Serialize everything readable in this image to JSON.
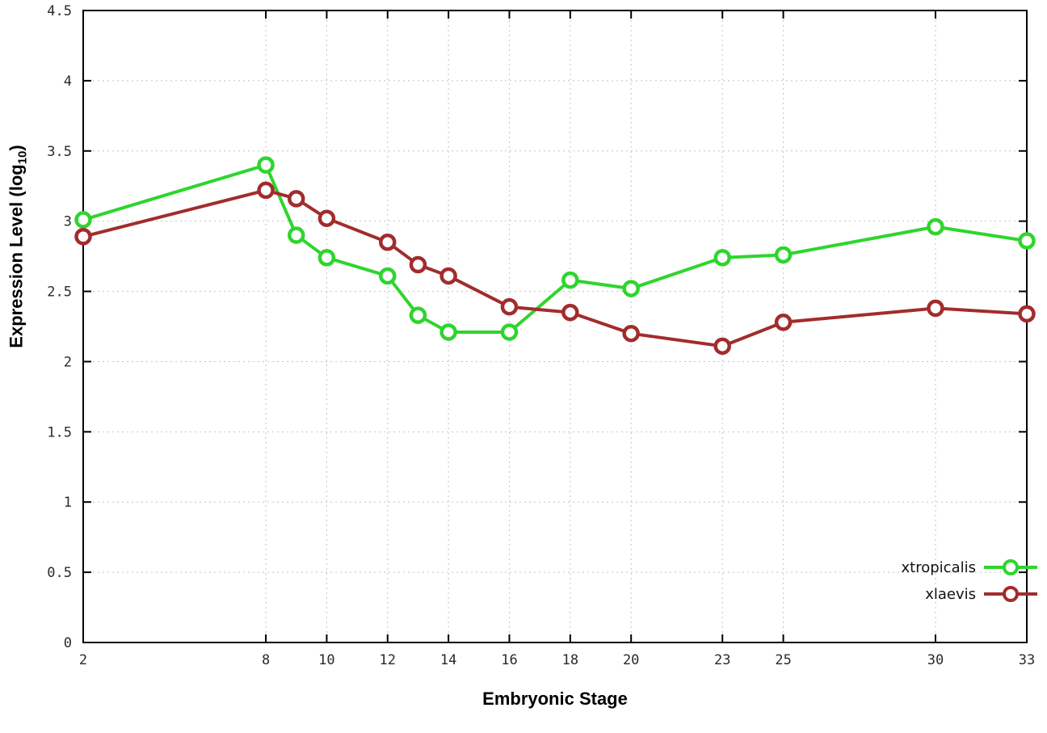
{
  "chart_data": {
    "type": "line",
    "title": "",
    "xlabel": "Embryonic Stage",
    "ylabel": "Expression Level (log10)",
    "ylabel_parts": [
      "Expression Level (log",
      "10",
      ")"
    ],
    "xlim": [
      2,
      33
    ],
    "ylim": [
      0,
      4.5
    ],
    "xticks": [
      2,
      8,
      10,
      12,
      14,
      16,
      18,
      20,
      23,
      25,
      30,
      33
    ],
    "yticks": [
      0,
      0.5,
      1,
      1.5,
      2,
      2.5,
      3,
      3.5,
      4,
      4.5
    ],
    "grid": true,
    "legend_position": "bottom-right",
    "x": [
      2,
      8,
      9,
      10,
      12,
      13,
      14,
      16,
      18,
      20,
      23,
      25,
      30,
      33
    ],
    "series": [
      {
        "name": "xtropicalis",
        "color": "#2ed52e",
        "values": [
          3.01,
          3.4,
          2.9,
          2.74,
          2.61,
          2.33,
          2.21,
          2.21,
          2.58,
          2.52,
          2.74,
          2.76,
          2.96,
          2.86
        ]
      },
      {
        "name": "xlaevis",
        "color": "#a22c2c",
        "values": [
          2.89,
          3.22,
          3.16,
          3.02,
          2.85,
          2.69,
          2.61,
          2.39,
          2.35,
          2.2,
          2.11,
          2.28,
          2.38,
          2.34
        ]
      }
    ]
  }
}
